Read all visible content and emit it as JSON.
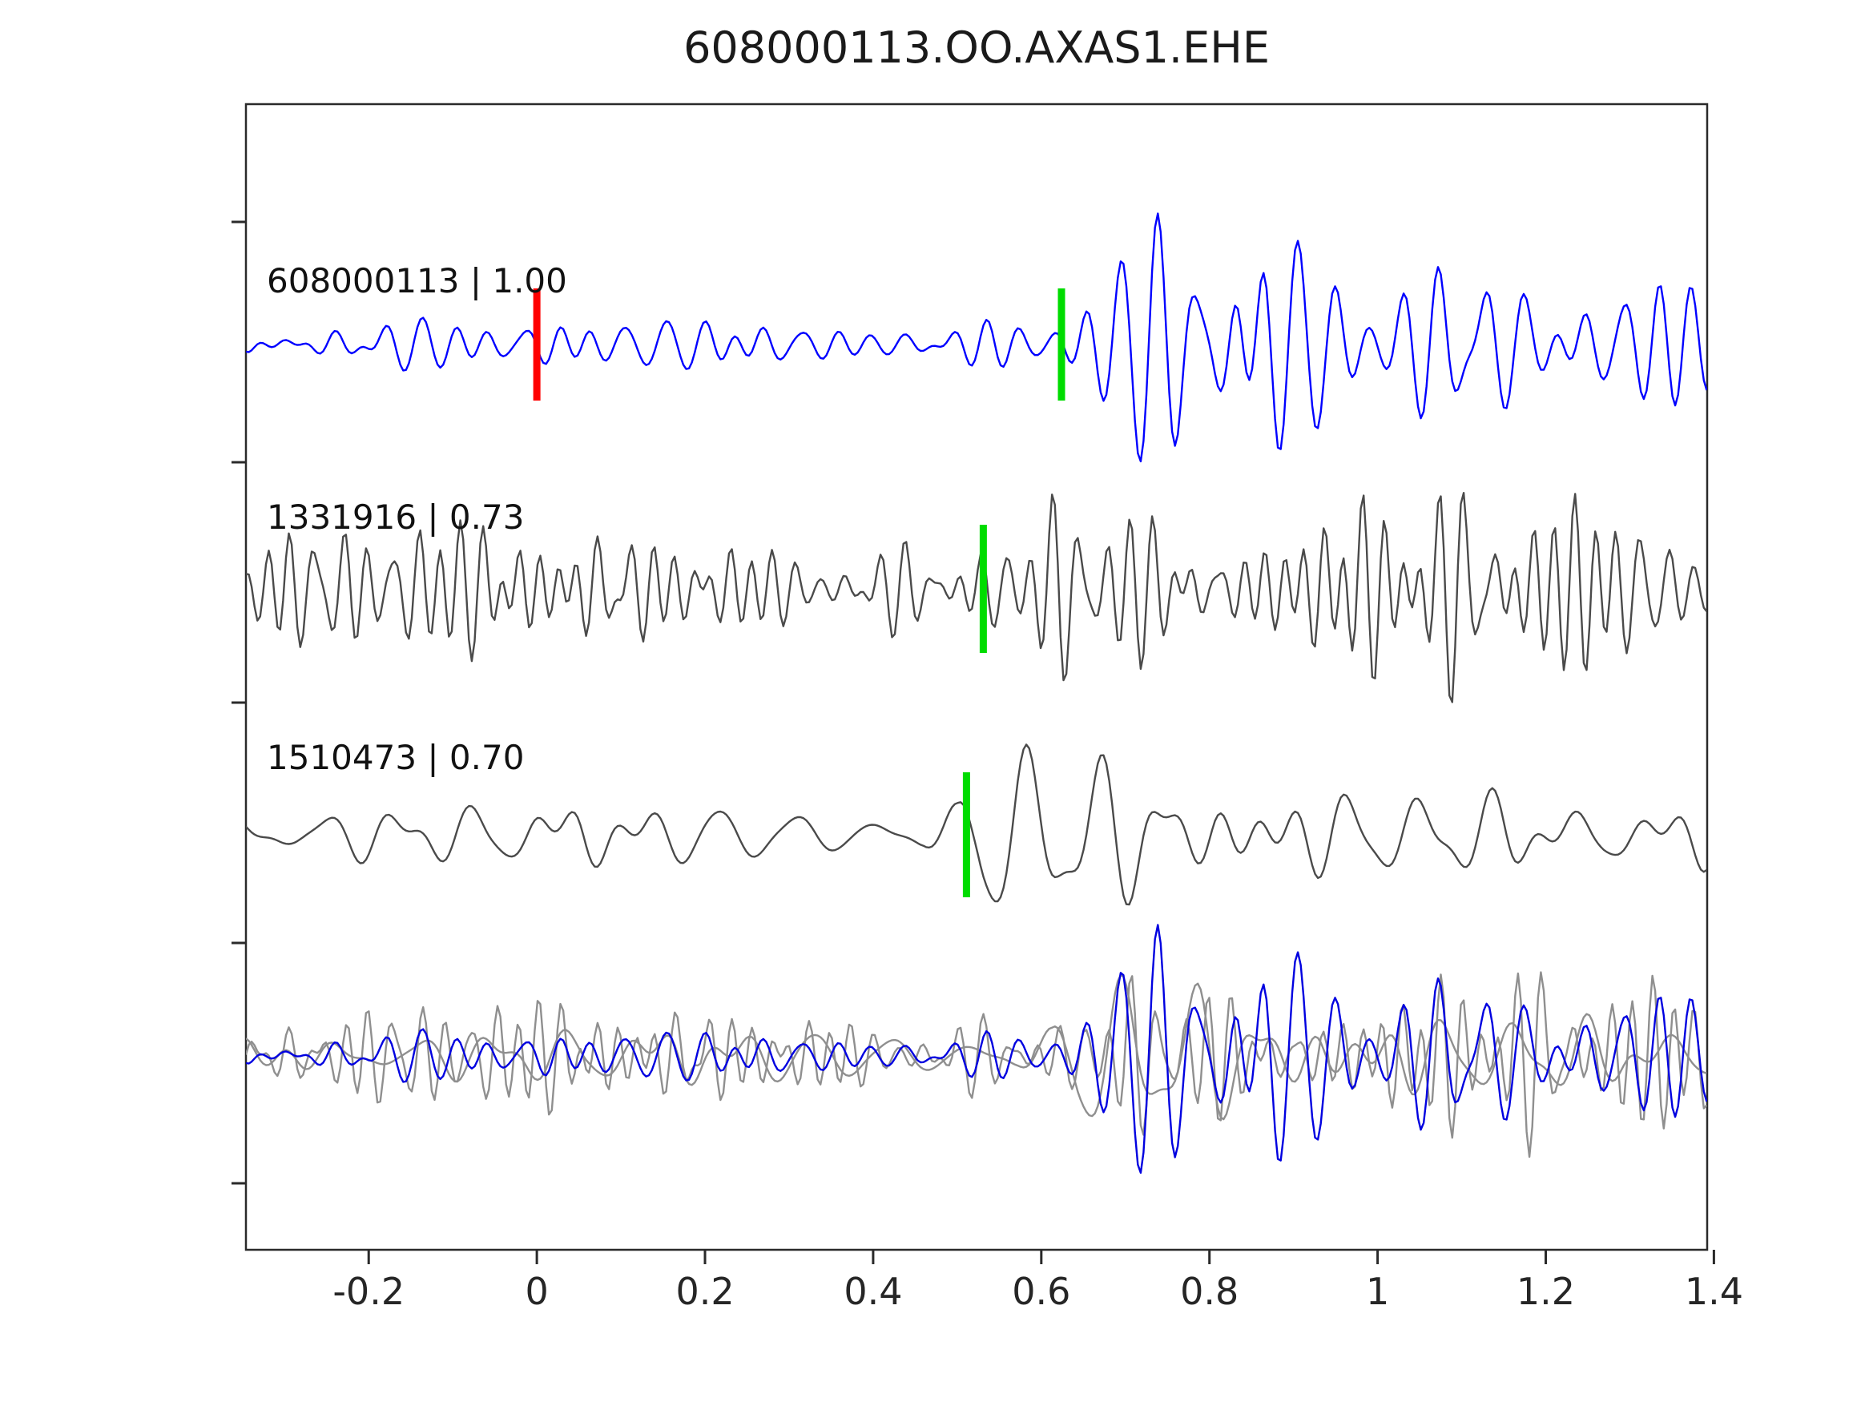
{
  "title": "608000113.OO.AXAS1.EHE",
  "colors": {
    "axis": "#2a2a2a",
    "tick_label": "#262626",
    "trace_label": "#111111",
    "pick_red": "#ff0000",
    "pick_green": "#00dc00",
    "template_blue": "#0000ff",
    "trace_gray": "#4a4a4a",
    "overlay_gray": "#8f8f8f",
    "overlay_blue": "#0000e0"
  },
  "chart_data": {
    "type": "line",
    "title": "608000113.OO.AXAS1.EHE",
    "xlabel": "",
    "ylabel": "",
    "x_range": [
      -0.346,
      1.392
    ],
    "grid": false,
    "legend": "none",
    "x_ticks": {
      "values": [
        -0.2,
        0,
        0.2,
        0.4,
        0.6,
        0.8,
        1,
        1.2,
        1.4
      ],
      "labels": [
        "-0.2",
        "0",
        "0.2",
        "0.4",
        "0.6",
        "0.8",
        "1",
        "1.2",
        "1.4"
      ]
    },
    "traces": [
      {
        "id": "608000113",
        "label": "608000113 | 1.00",
        "correlation": 1.0,
        "role": "template",
        "color": "#0000ff",
        "seed": 11,
        "freq_band": [
          16,
          34
        ],
        "envelope": [
          [
            -0.35,
            26
          ],
          [
            -0.1,
            30
          ],
          [
            0,
            34
          ],
          [
            0.1,
            30
          ],
          [
            0.35,
            28
          ],
          [
            0.5,
            30
          ],
          [
            0.58,
            40
          ],
          [
            0.63,
            60
          ],
          [
            0.68,
            85
          ],
          [
            0.73,
            105
          ],
          [
            0.78,
            95
          ],
          [
            0.83,
            130
          ],
          [
            0.88,
            135
          ],
          [
            0.95,
            85
          ],
          [
            1.05,
            70
          ],
          [
            1.1,
            80
          ],
          [
            1.17,
            95
          ],
          [
            1.22,
            75
          ],
          [
            1.3,
            85
          ],
          [
            1.4,
            75
          ]
        ],
        "markers": [
          {
            "x": 0.0,
            "color": "#ff0000",
            "kind": "template-origin"
          },
          {
            "x": 0.624,
            "color": "#00dc00",
            "kind": "pick"
          }
        ]
      },
      {
        "id": "1331916",
        "label": "1331916 | 0.73",
        "correlation": 0.73,
        "role": "detection",
        "color": "#4a4a4a",
        "seed": 27,
        "freq_band": [
          24,
          46
        ],
        "envelope": [
          [
            -0.35,
            55
          ],
          [
            -0.3,
            105
          ],
          [
            -0.22,
            110
          ],
          [
            -0.15,
            80
          ],
          [
            -0.08,
            55
          ],
          [
            0,
            95
          ],
          [
            0.08,
            90
          ],
          [
            0.15,
            60
          ],
          [
            0.25,
            50
          ],
          [
            0.35,
            45
          ],
          [
            0.45,
            55
          ],
          [
            0.52,
            75
          ],
          [
            0.58,
            130
          ],
          [
            0.62,
            150
          ],
          [
            0.66,
            80
          ],
          [
            0.75,
            60
          ],
          [
            0.82,
            80
          ],
          [
            0.9,
            75
          ],
          [
            0.98,
            110
          ],
          [
            1.05,
            120
          ],
          [
            1.1,
            130
          ],
          [
            1.17,
            135
          ],
          [
            1.22,
            120
          ],
          [
            1.3,
            95
          ],
          [
            1.35,
            80
          ],
          [
            1.4,
            60
          ]
        ],
        "markers": [
          {
            "x": 0.531,
            "color": "#00dc00",
            "kind": "pick"
          }
        ]
      },
      {
        "id": "1510473",
        "label": "1510473 | 0.70",
        "correlation": 0.7,
        "role": "detection",
        "color": "#4a4a4a",
        "seed": 43,
        "freq_band": [
          10,
          22
        ],
        "envelope": [
          [
            -0.35,
            18
          ],
          [
            -0.15,
            20
          ],
          [
            -0.05,
            30
          ],
          [
            0,
            60
          ],
          [
            0.05,
            65
          ],
          [
            0.1,
            45
          ],
          [
            0.2,
            40
          ],
          [
            0.3,
            45
          ],
          [
            0.4,
            35
          ],
          [
            0.46,
            30
          ],
          [
            0.5,
            60
          ],
          [
            0.53,
            135
          ],
          [
            0.57,
            150
          ],
          [
            0.62,
            120
          ],
          [
            0.68,
            110
          ],
          [
            0.75,
            95
          ],
          [
            0.82,
            70
          ],
          [
            0.9,
            55
          ],
          [
            1,
            45
          ],
          [
            1.1,
            40
          ],
          [
            1.2,
            35
          ],
          [
            1.27,
            55
          ],
          [
            1.35,
            40
          ],
          [
            1.4,
            35
          ]
        ],
        "markers": [
          {
            "x": 0.511,
            "color": "#00dc00",
            "kind": "pick"
          }
        ]
      }
    ],
    "overlay_row": {
      "description": "all traces superimposed",
      "components": [
        {
          "trace_index": 1,
          "color": "#8f8f8f",
          "scale": 0.85,
          "shift": 0.093
        },
        {
          "trace_index": 2,
          "color": "#8f8f8f",
          "scale": 0.9,
          "shift": 0.113
        },
        {
          "trace_index": 0,
          "color": "#0000e0",
          "scale": 1.0,
          "shift": 0.0
        }
      ]
    }
  }
}
